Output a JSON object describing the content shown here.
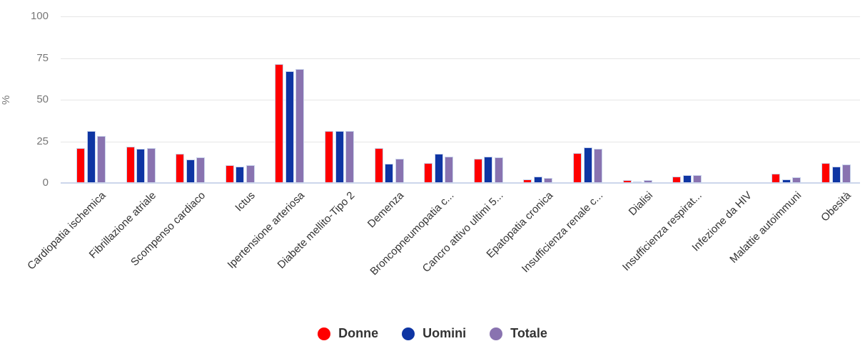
{
  "chart_data": {
    "type": "bar",
    "title": "",
    "xlabel": "",
    "ylabel": "%",
    "ylim": [
      0,
      100
    ],
    "yticks": [
      0,
      25,
      50,
      75,
      100
    ],
    "grid": true,
    "legend_position": "bottom-center",
    "categories": [
      "Cardiopatia ischemica",
      "Fibrillazione atriale",
      "Scompenso cardiaco",
      "Ictus",
      "Ipertensione arteriosa",
      "Diabete mellito-Tipo 2",
      "Demenza",
      "Broncopneumopatia c...",
      "Cancro attivo ultimi 5...",
      "Epatopatia cronica",
      "Insufficienza renale c...",
      "Dialisi",
      "Insufficienza respirat...",
      "Infezione da HIV",
      "Malattie autoimmuni",
      "Obesità"
    ],
    "series": [
      {
        "name": "Donne",
        "color": "#ff0000",
        "values": [
          21,
          22,
          17.5,
          10.5,
          71.5,
          31,
          21,
          12,
          14.5,
          2,
          18,
          1.5,
          4,
          0.2,
          5.5,
          12
        ]
      },
      {
        "name": "Uomini",
        "color": "#0e35a3",
        "values": [
          31,
          20.5,
          14,
          10,
          67,
          31,
          11.5,
          17.5,
          16,
          4,
          21.5,
          1,
          4.5,
          0.2,
          2,
          10
        ]
      },
      {
        "name": "Totale",
        "color": "#8973b0",
        "values": [
          28,
          21,
          15.5,
          10.5,
          68.5,
          31,
          14.5,
          16,
          15.5,
          3,
          20.5,
          1.5,
          4.5,
          0.3,
          3.5,
          11
        ]
      }
    ]
  },
  "styles": {
    "background": "#ffffff",
    "grid_color": "#e6e6e6",
    "axis_line_color": "#ccd6eb",
    "tick_label_color": "#777777",
    "category_label_color": "#333333",
    "legend_text_color": "#333333"
  }
}
